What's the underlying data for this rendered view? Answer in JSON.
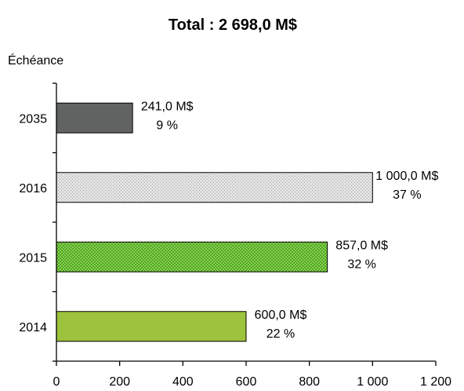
{
  "chart_data": {
    "type": "bar",
    "orientation": "horizontal",
    "title": "Total : 2 698,0 M$",
    "ylabel": "Échéance",
    "xlabel": "",
    "xlim": [
      0,
      1200
    ],
    "xticks": [
      0,
      200,
      400,
      600,
      800,
      1000,
      1200
    ],
    "xtick_labels": [
      "0",
      "200",
      "400",
      "600",
      "800",
      "1 000",
      "1 200"
    ],
    "grid": false,
    "bars": [
      {
        "category": "2035",
        "value": 241.0,
        "value_label": "241,0 M$",
        "pct_label": "9 %",
        "color": "#616362",
        "pattern": "solid"
      },
      {
        "category": "2016",
        "value": 1000.0,
        "value_label": "1 000,0 M$",
        "pct_label": "37 %",
        "color": "#d4d4d4",
        "pattern": "dotted"
      },
      {
        "category": "2015",
        "value": 857.0,
        "value_label": "857,0 M$",
        "pct_label": "32 %",
        "color": "#72c23c",
        "pattern": "checkered"
      },
      {
        "category": "2014",
        "value": 600.0,
        "value_label": "600,0 M$",
        "pct_label": "22 %",
        "color": "#9dc23d",
        "pattern": "solid"
      }
    ]
  }
}
